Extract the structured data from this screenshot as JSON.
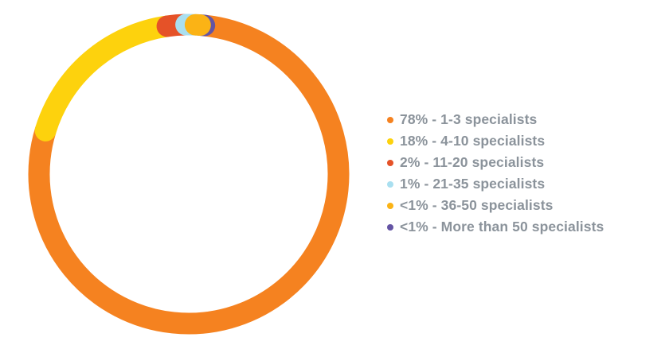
{
  "chart_data": {
    "type": "pie",
    "variant": "donut",
    "legend_position": "right",
    "series": [
      {
        "label": "78% - 1-3 specialists",
        "value": 78,
        "color": "#f58220"
      },
      {
        "label": "18% - 4-10 specialists",
        "value": 18,
        "color": "#fdd20d"
      },
      {
        "label": "2% - 11-20 specialists",
        "value": 2,
        "color": "#e55228"
      },
      {
        "label": "1% - 21-35 specialists",
        "value": 1,
        "color": "#a9dff0"
      },
      {
        "label": "<1% - 36-50 specialists",
        "value": 0.5,
        "color": "#fbb315"
      },
      {
        "label": "<1% - More than 50 specialists",
        "value": 0.5,
        "color": "#6454a4"
      }
    ]
  }
}
